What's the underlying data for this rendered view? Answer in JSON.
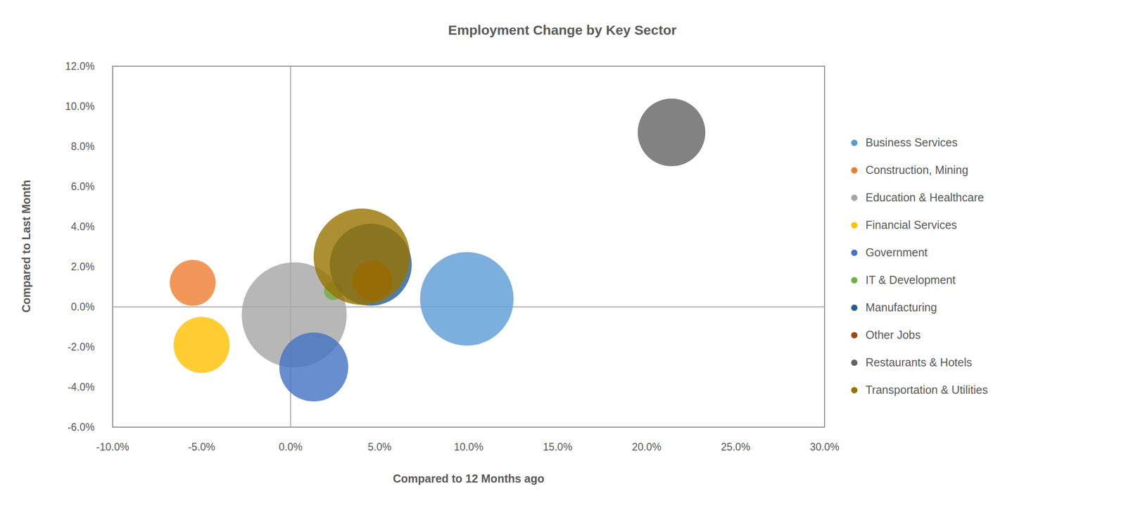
{
  "chart_data": {
    "type": "bubble",
    "title": "Employment Change by Key Sector",
    "x_label": "Compared to 12 Months ago",
    "y_label": "Compared to Last Month",
    "xlim": [
      -10,
      30
    ],
    "ylim": [
      -6,
      12
    ],
    "xticks": [
      {
        "value": -10,
        "label": "-10.0%"
      },
      {
        "value": -5,
        "label": "-5.0%"
      },
      {
        "value": 0,
        "label": "0.0%"
      },
      {
        "value": 5,
        "label": "5.0%"
      },
      {
        "value": 10,
        "label": "10.0%"
      },
      {
        "value": 15,
        "label": "15.0%"
      },
      {
        "value": 20,
        "label": "20.0%"
      },
      {
        "value": 25,
        "label": "25.0%"
      },
      {
        "value": 30,
        "label": "30.0%"
      }
    ],
    "yticks": [
      {
        "value": -6,
        "label": "-6.0%"
      },
      {
        "value": -4,
        "label": "-4.0%"
      },
      {
        "value": -2,
        "label": "-2.0%"
      },
      {
        "value": 0,
        "label": "0.0%"
      },
      {
        "value": 2,
        "label": "2.0%"
      },
      {
        "value": 4,
        "label": "4.0%"
      },
      {
        "value": 6,
        "label": "6.0%"
      },
      {
        "value": 8,
        "label": "8.0%"
      },
      {
        "value": 10,
        "label": "10.0%"
      },
      {
        "value": 12,
        "label": "12.0%"
      }
    ],
    "grid": false,
    "legend": "right",
    "series": [
      {
        "name": "Business Services",
        "color": "#5b9bd5",
        "x": [
          9.9
        ],
        "y": [
          0.4
        ],
        "size": [
          423
        ]
      },
      {
        "name": "Construction, Mining",
        "color": "#ed7d31",
        "x": [
          -5.5
        ],
        "y": [
          1.2
        ],
        "size": [
          102
        ]
      },
      {
        "name": "Education & Healthcare",
        "color": "#a5a5a5",
        "x": [
          0.2
        ],
        "y": [
          -0.4
        ],
        "size": [
          533
        ]
      },
      {
        "name": "Financial Services",
        "color": "#ffc000",
        "x": [
          -5.0
        ],
        "y": [
          -1.9
        ],
        "size": [
          152
        ]
      },
      {
        "name": "Government",
        "color": "#4472c4",
        "x": [
          1.3
        ],
        "y": [
          -3.0
        ],
        "size": [
          230
        ]
      },
      {
        "name": "IT & Development",
        "color": "#70ad47",
        "x": [
          2.4
        ],
        "y": [
          0.8
        ],
        "size": [
          17
        ]
      },
      {
        "name": "Manufacturing",
        "color": "#255e91",
        "x": [
          4.5
        ],
        "y": [
          2.1
        ],
        "size": [
          325
        ]
      },
      {
        "name": "Other Jobs",
        "color": "#9e480e",
        "x": [
          4.6
        ],
        "y": [
          1.3
        ],
        "size": [
          78
        ]
      },
      {
        "name": "Restaurants & Hotels",
        "color": "#636363",
        "x": [
          21.4
        ],
        "y": [
          8.7
        ],
        "size": [
          221
        ]
      },
      {
        "name": "Transportation & Utilities",
        "color": "#997300",
        "x": [
          4.0
        ],
        "y": [
          2.5
        ],
        "size": [
          449
        ]
      }
    ]
  }
}
